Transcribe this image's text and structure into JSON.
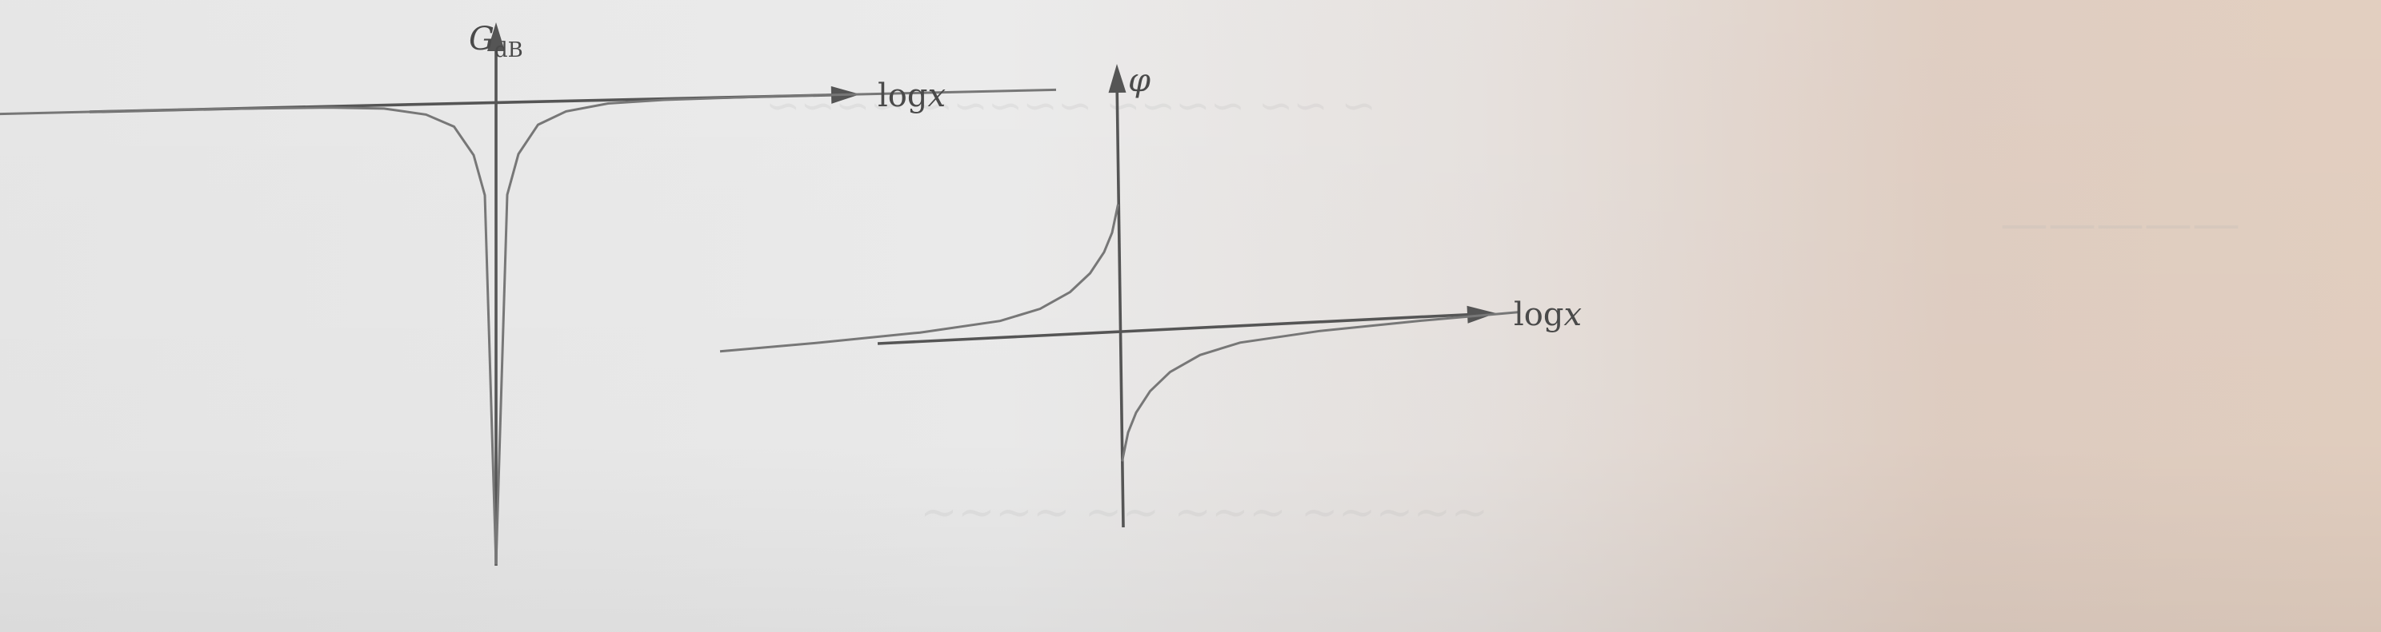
{
  "chart_data": [
    {
      "type": "line",
      "description": "Bode magnitude diagram: gain in dB versus log x (notch at the center frequency, no numeric ticks)",
      "ylabel": "G",
      "ylabel_subscript": "dB",
      "xlabel_prefix": "log",
      "xlabel_var": "x",
      "series": [
        {
          "x": [
            -2.0,
            -1.5,
            -1.0,
            -0.6,
            -0.4,
            -0.25,
            -0.15,
            -0.08,
            -0.04,
            0.0,
            0.04,
            0.08,
            0.15,
            0.25,
            0.4,
            0.6,
            1.0,
            1.5,
            2.0
          ],
          "y": [
            0.0,
            0.0,
            0.0,
            -0.1,
            -0.3,
            -0.9,
            -2.0,
            -4.5,
            -8.0,
            -40.0,
            -8.0,
            -4.5,
            -2.0,
            -0.9,
            -0.3,
            -0.1,
            0.0,
            0.0,
            0.0
          ]
        }
      ],
      "xlim": [
        -2.0,
        2.0
      ],
      "ylim": [
        -40.0,
        4.0
      ],
      "grid": false
    },
    {
      "type": "line",
      "description": "Bode phase diagram: phase versus log x with a jump at the center frequency (no numeric ticks)",
      "ylabel": "φ",
      "xlabel_prefix": "log",
      "xlabel_var": "x",
      "series": [
        {
          "x": [
            -2.0,
            -1.5,
            -1.0,
            -0.6,
            -0.4,
            -0.25,
            -0.15,
            -0.08,
            -0.04,
            -0.01
          ],
          "y": [
            0.0,
            0.03,
            0.07,
            0.13,
            0.21,
            0.33,
            0.47,
            0.63,
            0.78,
            1.0
          ]
        },
        {
          "x": [
            0.01,
            0.04,
            0.08,
            0.15,
            0.25,
            0.4,
            0.6,
            1.0,
            1.5,
            2.0
          ],
          "y": [
            -1.0,
            -0.78,
            -0.63,
            -0.47,
            -0.33,
            -0.21,
            -0.13,
            -0.07,
            -0.03,
            0.0
          ]
        }
      ],
      "xlim": [
        -2.0,
        2.0
      ],
      "ylim": [
        -1.6,
        1.6
      ],
      "grid": false
    }
  ]
}
